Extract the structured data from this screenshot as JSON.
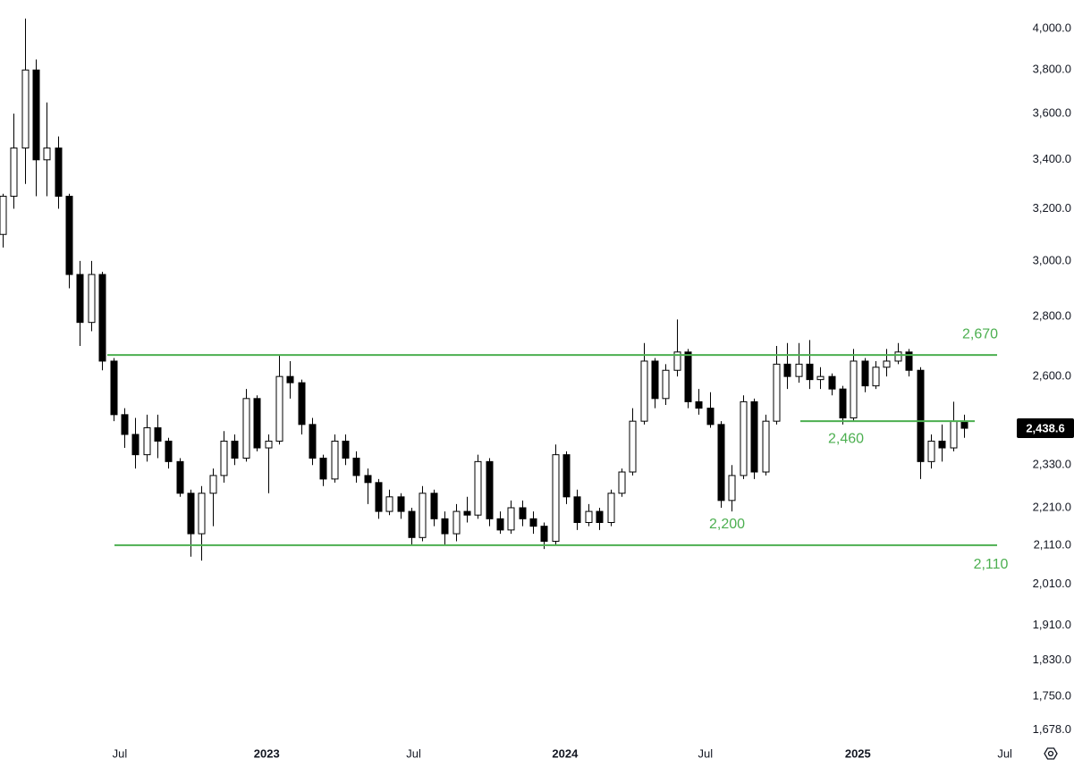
{
  "chart_data": {
    "type": "candlestick",
    "open": [
      3100,
      3250,
      3450,
      3800,
      3400,
      3450,
      3250,
      2950,
      2780,
      2950,
      2650,
      2480,
      2420,
      2360,
      2440,
      2400,
      2340,
      2250,
      2140,
      2250,
      2300,
      2400,
      2350,
      2530,
      2380,
      2400,
      2600,
      2580,
      2450,
      2350,
      2290,
      2400,
      2350,
      2300,
      2280,
      2200,
      2240,
      2200,
      2130,
      2250,
      2180,
      2140,
      2200,
      2190,
      2340,
      2180,
      2150,
      2210,
      2180,
      2160,
      2120,
      2360,
      2240,
      2170,
      2200,
      2170,
      2250,
      2310,
      2460,
      2650,
      2530,
      2620,
      2680,
      2520,
      2500,
      2450,
      2230,
      2300,
      2520,
      2310,
      2460,
      2640,
      2600,
      2640,
      2590,
      2600,
      2560,
      2470,
      2650,
      2570,
      2630,
      2650,
      2680,
      2620,
      2340,
      2400,
      2380,
      2460
    ],
    "high": [
      3260,
      3600,
      4050,
      3850,
      3650,
      3500,
      3260,
      3000,
      3000,
      2960,
      2660,
      2500,
      2470,
      2480,
      2480,
      2410,
      2350,
      2260,
      2270,
      2320,
      2430,
      2420,
      2560,
      2540,
      2420,
      2670,
      2650,
      2590,
      2470,
      2360,
      2420,
      2420,
      2370,
      2320,
      2290,
      2260,
      2250,
      2210,
      2270,
      2260,
      2200,
      2220,
      2240,
      2360,
      2350,
      2200,
      2230,
      2230,
      2200,
      2170,
      2390,
      2370,
      2260,
      2220,
      2210,
      2260,
      2320,
      2500,
      2710,
      2660,
      2640,
      2790,
      2690,
      2560,
      2550,
      2460,
      2330,
      2540,
      2530,
      2480,
      2700,
      2710,
      2710,
      2720,
      2630,
      2610,
      2570,
      2690,
      2660,
      2650,
      2690,
      2710,
      2690,
      2630,
      2420,
      2450,
      2520,
      2480
    ],
    "low": [
      3050,
      3200,
      3300,
      3250,
      3250,
      3200,
      2900,
      2700,
      2750,
      2620,
      2460,
      2380,
      2320,
      2340,
      2350,
      2320,
      2240,
      2080,
      2070,
      2160,
      2280,
      2330,
      2340,
      2370,
      2250,
      2390,
      2530,
      2420,
      2330,
      2270,
      2280,
      2330,
      2280,
      2220,
      2180,
      2190,
      2180,
      2110,
      2120,
      2160,
      2110,
      2120,
      2170,
      2180,
      2160,
      2140,
      2140,
      2160,
      2140,
      2100,
      2110,
      2220,
      2150,
      2160,
      2150,
      2160,
      2240,
      2300,
      2450,
      2500,
      2510,
      2600,
      2500,
      2480,
      2440,
      2210,
      2200,
      2290,
      2290,
      2300,
      2450,
      2560,
      2580,
      2560,
      2560,
      2540,
      2450,
      2460,
      2550,
      2560,
      2600,
      2640,
      2600,
      2290,
      2320,
      2340,
      2370,
      2410
    ],
    "close": [
      3250,
      3450,
      3800,
      3400,
      3450,
      3250,
      2950,
      2780,
      2950,
      2650,
      2480,
      2420,
      2360,
      2440,
      2400,
      2340,
      2250,
      2140,
      2250,
      2300,
      2400,
      2350,
      2530,
      2380,
      2400,
      2600,
      2580,
      2450,
      2350,
      2290,
      2400,
      2350,
      2300,
      2280,
      2200,
      2240,
      2200,
      2130,
      2250,
      2180,
      2140,
      2200,
      2190,
      2340,
      2180,
      2150,
      2210,
      2180,
      2160,
      2120,
      2360,
      2240,
      2170,
      2200,
      2170,
      2250,
      2310,
      2460,
      2650,
      2530,
      2620,
      2680,
      2520,
      2500,
      2450,
      2230,
      2300,
      2520,
      2310,
      2460,
      2640,
      2600,
      2640,
      2590,
      2600,
      2560,
      2470,
      2650,
      2570,
      2630,
      2650,
      2680,
      2620,
      2340,
      2400,
      2380,
      2460,
      2438.6
    ],
    "close_label": "2,438.6",
    "up_color": "#ffffff",
    "down_color": "#000000",
    "log_scale": true,
    "xlim": [
      -0.24,
      90.0
    ],
    "xticks": [
      {
        "value": 10.6,
        "label": "Jul"
      },
      {
        "value": 23.9,
        "label": "2023"
      },
      {
        "value": 37.2,
        "label": "Jul"
      },
      {
        "value": 50.9,
        "label": "2024"
      },
      {
        "value": 63.6,
        "label": "Jul"
      },
      {
        "value": 77.4,
        "label": "2025"
      },
      {
        "value": 90.7,
        "label": "Jul"
      }
    ],
    "ylim": [
      1650,
      4144
    ],
    "yticks": [
      {
        "value": 4000,
        "label": "4,000.0"
      },
      {
        "value": 3800,
        "label": "3,800.0"
      },
      {
        "value": 3600,
        "label": "3,600.0"
      },
      {
        "value": 3400,
        "label": "3,400.0"
      },
      {
        "value": 3200,
        "label": "3,200.0"
      },
      {
        "value": 3000,
        "label": "3,000.0"
      },
      {
        "value": 2800,
        "label": "2,800.0"
      },
      {
        "value": 2600,
        "label": "2,600.0"
      },
      {
        "value": 2330,
        "label": "2,330.0"
      },
      {
        "value": 2210,
        "label": "2,210.0"
      },
      {
        "value": 2110,
        "label": "2,110.0"
      },
      {
        "value": 2010,
        "label": "2,010.0"
      },
      {
        "value": 1910,
        "label": "1,910.0"
      },
      {
        "value": 1830,
        "label": "1,830.0"
      },
      {
        "value": 1750,
        "label": "1,750.0"
      },
      {
        "value": 1678,
        "label": "1,678.0"
      }
    ],
    "levels": [
      {
        "value": 2670,
        "label": "2,670"
      },
      {
        "value": 2460,
        "label": "2,460"
      },
      {
        "value": 2110,
        "label": "2,110"
      }
    ],
    "annotations": [
      "2,200"
    ],
    "level_color": "#4caf50"
  }
}
